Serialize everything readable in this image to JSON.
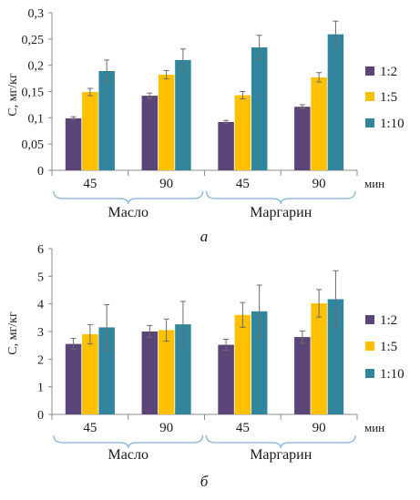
{
  "chart_data": [
    {
      "type": "bar",
      "panel_label": "а",
      "ylabel": "С, мг/кг",
      "ylim": [
        0,
        0.3
      ],
      "yticks": [
        "0",
        "0,05",
        "0,1",
        "0,15",
        "0,2",
        "0,25",
        "0,3"
      ],
      "categories": [
        "45",
        "90",
        "45",
        "90"
      ],
      "groups": [
        "Масло",
        "Маргарин"
      ],
      "x_unit": "мин",
      "grid": false,
      "legend_position": "right",
      "series": [
        {
          "name": "1:2",
          "color": "#5a4478",
          "values": [
            0.099,
            0.142,
            0.092,
            0.121
          ],
          "errors": [
            0.003,
            0.005,
            0.003,
            0.004
          ]
        },
        {
          "name": "1:5",
          "color": "#ffc000",
          "values": [
            0.149,
            0.182,
            0.143,
            0.177
          ],
          "errors": [
            0.007,
            0.008,
            0.007,
            0.009
          ]
        },
        {
          "name": "1:10",
          "color": "#31859c",
          "values": [
            0.189,
            0.21,
            0.234,
            0.259
          ],
          "errors": [
            0.021,
            0.021,
            0.023,
            0.025
          ]
        }
      ]
    },
    {
      "type": "bar",
      "panel_label": "б",
      "ylabel": "С, мг/кг",
      "ylim": [
        0,
        6
      ],
      "yticks": [
        "0",
        "1",
        "2",
        "3",
        "4",
        "5",
        "6"
      ],
      "categories": [
        "45",
        "90",
        "45",
        "90"
      ],
      "groups": [
        "Масло",
        "Маргарин"
      ],
      "x_unit": "мин",
      "grid": false,
      "legend_position": "right",
      "series": [
        {
          "name": "1:2",
          "color": "#5a4478",
          "values": [
            2.55,
            3.0,
            2.52,
            2.8
          ],
          "errors": [
            0.2,
            0.22,
            0.2,
            0.22
          ]
        },
        {
          "name": "1:5",
          "color": "#ffc000",
          "values": [
            2.9,
            3.05,
            3.6,
            4.02
          ],
          "errors": [
            0.35,
            0.4,
            0.45,
            0.5
          ]
        },
        {
          "name": "1:10",
          "color": "#31859c",
          "values": [
            3.15,
            3.26,
            3.73,
            4.17
          ],
          "errors": [
            0.82,
            0.83,
            0.95,
            1.03
          ]
        }
      ]
    }
  ]
}
